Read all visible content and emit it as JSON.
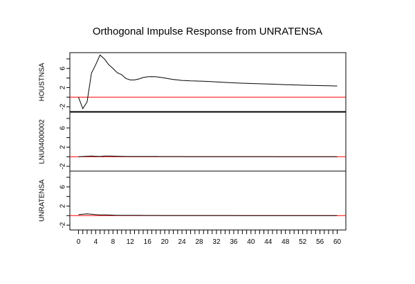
{
  "chart_data": {
    "type": "line",
    "title": "Orthogonal Impulse Response from UNRATENSA",
    "x": [
      0,
      1,
      2,
      3,
      4,
      5,
      6,
      7,
      8,
      9,
      10,
      11,
      12,
      13,
      14,
      15,
      16,
      17,
      18,
      19,
      20,
      21,
      22,
      23,
      24,
      25,
      26,
      27,
      28,
      29,
      30,
      31,
      32,
      33,
      34,
      35,
      36,
      37,
      38,
      39,
      40,
      41,
      42,
      43,
      44,
      45,
      46,
      47,
      48,
      49,
      50,
      51,
      52,
      53,
      54,
      55,
      56,
      57,
      58,
      59,
      60
    ],
    "xlim": [
      -2,
      62
    ],
    "x_ticks": [
      0,
      1,
      2,
      3,
      4,
      5,
      6,
      7,
      8,
      9,
      10,
      11,
      12,
      13,
      14,
      15,
      16,
      17,
      18,
      19,
      20,
      21,
      22,
      23,
      24,
      25,
      26,
      27,
      28,
      29,
      30,
      31,
      32,
      33,
      34,
      35,
      36,
      37,
      38,
      39,
      40,
      41,
      42,
      43,
      44,
      45,
      46,
      47,
      48,
      49,
      50,
      51,
      52,
      53,
      54,
      55,
      56,
      57,
      58,
      59,
      60
    ],
    "x_tick_labels": [
      "0",
      "4",
      "8",
      "12",
      "16",
      "20",
      "24",
      "28",
      "32",
      "36",
      "40",
      "44",
      "48",
      "52",
      "56",
      "60"
    ],
    "x_tick_label_values": [
      0,
      4,
      8,
      12,
      16,
      20,
      24,
      28,
      32,
      36,
      40,
      44,
      48,
      52,
      56,
      60
    ],
    "ylim": [
      -3,
      9.3
    ],
    "y_ticks": [
      -2,
      2,
      6
    ],
    "y_tick_labels": [
      "-2",
      "2",
      "6"
    ],
    "y_minor_ticks": [
      0,
      4,
      8
    ],
    "reference_line": {
      "y": 0,
      "color": "#ff0000"
    },
    "line_color": "#000000",
    "series": [
      {
        "name": "HOUSTNSA",
        "values": [
          0.0,
          -2.4,
          -1.0,
          5.0,
          6.8,
          8.8,
          8.0,
          6.8,
          6.0,
          5.1,
          4.7,
          3.9,
          3.6,
          3.6,
          3.8,
          4.1,
          4.25,
          4.3,
          4.25,
          4.15,
          4.0,
          3.85,
          3.7,
          3.6,
          3.5,
          3.45,
          3.4,
          3.38,
          3.35,
          3.32,
          3.28,
          3.23,
          3.18,
          3.13,
          3.08,
          3.03,
          2.99,
          2.95,
          2.92,
          2.89,
          2.86,
          2.83,
          2.8,
          2.77,
          2.74,
          2.71,
          2.68,
          2.65,
          2.62,
          2.59,
          2.56,
          2.53,
          2.5,
          2.48,
          2.46,
          2.44,
          2.42,
          2.4,
          2.38,
          2.36,
          2.34
        ]
      },
      {
        "name": "LNU04000002",
        "values": [
          0.0,
          0.05,
          0.1,
          0.15,
          0.1,
          0.05,
          0.15,
          0.15,
          0.12,
          0.1,
          0.08,
          0.05,
          0.05,
          0.05,
          0.05,
          0.05,
          0.05,
          0.05,
          0.05,
          0.04,
          0.04,
          0.04,
          0.04,
          0.04,
          0.04,
          0.03,
          0.03,
          0.03,
          0.03,
          0.03,
          0.03,
          0.03,
          0.02,
          0.02,
          0.02,
          0.02,
          0.02,
          0.02,
          0.02,
          0.02,
          0.02,
          0.02,
          0.02,
          0.02,
          0.02,
          0.02,
          0.01,
          0.01,
          0.01,
          0.01,
          0.01,
          0.01,
          0.01,
          0.01,
          0.01,
          0.01,
          0.01,
          0.01,
          0.01,
          0.01,
          0.01
        ]
      },
      {
        "name": "UNRATENSA",
        "values": [
          0.2,
          0.3,
          0.35,
          0.3,
          0.2,
          0.15,
          0.15,
          0.12,
          0.1,
          0.05,
          0.05,
          0.05,
          0.05,
          0.05,
          0.05,
          0.04,
          0.04,
          0.04,
          0.04,
          0.03,
          0.03,
          0.03,
          0.03,
          0.03,
          0.02,
          0.02,
          0.02,
          0.02,
          0.02,
          0.02,
          0.02,
          0.02,
          0.02,
          0.02,
          0.02,
          0.02,
          0.02,
          0.01,
          0.01,
          0.01,
          0.01,
          0.01,
          0.01,
          0.01,
          0.01,
          0.01,
          0.01,
          0.01,
          0.01,
          0.01,
          0.01,
          0.01,
          0.01,
          0.01,
          0.01,
          0.01,
          0.01,
          0.01,
          0.01,
          0.01,
          0.01
        ]
      }
    ]
  }
}
